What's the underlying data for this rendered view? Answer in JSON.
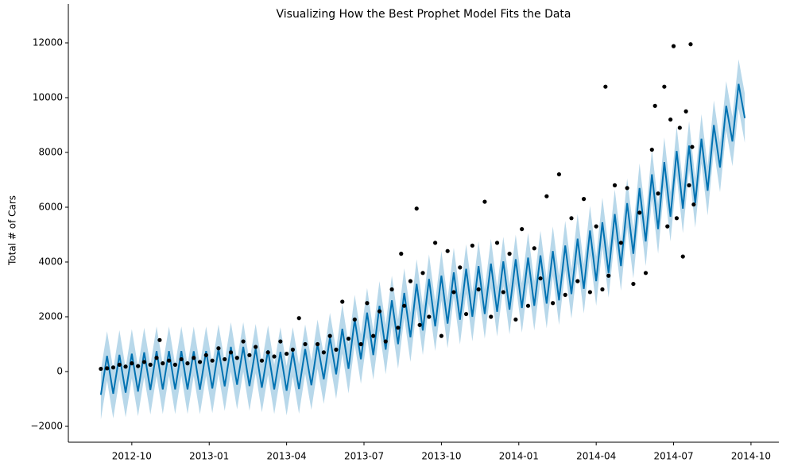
{
  "chart_data": {
    "type": "forecast",
    "title": "Visualizing How the Best Prophet Model Fits the Data",
    "y_label": "Total # of Cars",
    "xlim": [
      2012.545,
      2014.84
    ],
    "ylim": [
      -2580,
      13420
    ],
    "xticks": [
      {
        "value": 2012.75,
        "label": "2012-10"
      },
      {
        "value": 2013.0,
        "label": "2013-01"
      },
      {
        "value": 2013.25,
        "label": "2013-04"
      },
      {
        "value": 2013.5,
        "label": "2013-07"
      },
      {
        "value": 2013.75,
        "label": "2013-10"
      },
      {
        "value": 2014.0,
        "label": "2014-01"
      },
      {
        "value": 2014.25,
        "label": "2014-04"
      },
      {
        "value": 2014.5,
        "label": "2014-07"
      },
      {
        "value": 2014.75,
        "label": "2014-10"
      }
    ],
    "yticks": [
      {
        "value": -2000,
        "label": "−2000"
      },
      0,
      2000,
      4000,
      6000,
      8000,
      10000,
      12000
    ],
    "forecast": {
      "color": "#0072B2",
      "band_color": "#0072B2",
      "x": [
        2012.65,
        2012.67,
        2012.69,
        2012.71,
        2012.73,
        2012.75,
        2012.77,
        2012.79,
        2012.81,
        2012.83,
        2012.85,
        2012.87,
        2012.89,
        2012.91,
        2012.93,
        2012.95,
        2012.97,
        2012.99,
        2013.01,
        2013.03,
        2013.05,
        2013.07,
        2013.09,
        2013.11,
        2013.13,
        2013.15,
        2013.17,
        2013.19,
        2013.21,
        2013.23,
        2013.25,
        2013.27,
        2013.29,
        2013.31,
        2013.33,
        2013.35,
        2013.37,
        2013.39,
        2013.41,
        2013.43,
        2013.45,
        2013.47,
        2013.49,
        2013.51,
        2013.53,
        2013.55,
        2013.57,
        2013.59,
        2013.61,
        2013.63,
        2013.65,
        2013.67,
        2013.69,
        2013.71,
        2013.73,
        2013.75,
        2013.77,
        2013.79,
        2013.81,
        2013.83,
        2013.85,
        2013.87,
        2013.89,
        2013.91,
        2013.93,
        2013.95,
        2013.97,
        2013.99,
        2014.01,
        2014.03,
        2014.05,
        2014.07,
        2014.09,
        2014.11,
        2014.13,
        2014.15,
        2014.17,
        2014.19,
        2014.21,
        2014.23,
        2014.25,
        2014.27,
        2014.29,
        2014.31,
        2014.33,
        2014.35,
        2014.37,
        2014.39,
        2014.41,
        2014.43,
        2014.45,
        2014.47,
        2014.49,
        2014.51,
        2014.53,
        2014.55,
        2014.57,
        2014.59,
        2014.61,
        2014.63,
        2014.65,
        2014.67,
        2014.69,
        2014.71,
        2014.73
      ],
      "yhat": [
        -850,
        570,
        -810,
        610,
        -770,
        650,
        -730,
        700,
        -670,
        750,
        -650,
        750,
        -650,
        750,
        -650,
        740,
        -660,
        750,
        -620,
        820,
        -540,
        900,
        -480,
        900,
        -530,
        840,
        -590,
        780,
        -650,
        720,
        -700,
        720,
        -640,
        820,
        -500,
        1000,
        -280,
        1240,
        -100,
        1560,
        100,
        1900,
        450,
        2150,
        600,
        2400,
        800,
        2600,
        1000,
        2870,
        1250,
        3200,
        1500,
        3380,
        1650,
        3500,
        1750,
        3620,
        1890,
        3750,
        2000,
        3850,
        2100,
        3940,
        2180,
        4020,
        2260,
        4100,
        2320,
        4160,
        2400,
        4240,
        2480,
        4400,
        2600,
        4600,
        2830,
        4850,
        3020,
        5150,
        3300,
        5450,
        3600,
        5750,
        3850,
        6150,
        4300,
        6700,
        4750,
        7200,
        5200,
        7650,
        5650,
        8050,
        5950,
        8250,
        6150,
        8500,
        6600,
        9000,
        7450,
        9700,
        8400,
        10500,
        9250
      ],
      "yhat_lower": [
        -1750,
        -330,
        -1710,
        -290,
        -1670,
        -250,
        -1630,
        -200,
        -1570,
        -150,
        -1550,
        -150,
        -1550,
        -150,
        -1550,
        -160,
        -1560,
        -150,
        -1520,
        -80,
        -1440,
        0,
        -1380,
        0,
        -1430,
        -60,
        -1490,
        -120,
        -1550,
        -180,
        -1600,
        -180,
        -1540,
        -80,
        -1400,
        100,
        -1180,
        340,
        -1000,
        660,
        -800,
        1000,
        -450,
        1250,
        -300,
        1500,
        -100,
        1700,
        100,
        1970,
        350,
        2300,
        600,
        2480,
        750,
        2600,
        850,
        2720,
        990,
        2850,
        1100,
        2950,
        1200,
        3040,
        1280,
        3120,
        1360,
        3200,
        1420,
        3260,
        1500,
        3340,
        1580,
        3500,
        1700,
        3700,
        1930,
        3950,
        2120,
        4250,
        2400,
        4550,
        2700,
        4850,
        2950,
        5250,
        3400,
        5800,
        3850,
        6300,
        4300,
        6750,
        4750,
        7150,
        5050,
        7350,
        5250,
        7600,
        5700,
        8100,
        6550,
        8800,
        7500,
        9600,
        8350
      ],
      "yhat_upper": [
        50,
        1470,
        90,
        1510,
        130,
        1550,
        170,
        1600,
        230,
        1650,
        250,
        1650,
        250,
        1650,
        250,
        1640,
        240,
        1650,
        280,
        1720,
        360,
        1800,
        420,
        1800,
        370,
        1740,
        310,
        1680,
        250,
        1620,
        200,
        1620,
        260,
        1720,
        400,
        1900,
        620,
        2140,
        800,
        2460,
        1000,
        2800,
        1350,
        3050,
        1500,
        3300,
        1700,
        3500,
        1900,
        3770,
        2150,
        4100,
        2400,
        4280,
        2550,
        4400,
        2650,
        4520,
        2790,
        4650,
        2900,
        4750,
        3000,
        4840,
        3080,
        4920,
        3160,
        5000,
        3220,
        5060,
        3300,
        5140,
        3380,
        5300,
        3500,
        5500,
        3730,
        5750,
        3920,
        6050,
        4200,
        6350,
        4500,
        6650,
        4750,
        7050,
        5200,
        7600,
        5650,
        8100,
        6100,
        8550,
        6550,
        8950,
        6850,
        9150,
        7050,
        9400,
        7500,
        9900,
        8350,
        10600,
        9300,
        11400,
        10150
      ]
    },
    "observed": {
      "color": "#000000",
      "x": [
        2012.65,
        2012.67,
        2012.69,
        2012.71,
        2012.73,
        2012.75,
        2012.77,
        2012.79,
        2012.81,
        2012.83,
        2012.84,
        2012.85,
        2012.87,
        2012.89,
        2012.91,
        2012.93,
        2012.95,
        2012.97,
        2012.99,
        2013.01,
        2013.03,
        2013.05,
        2013.07,
        2013.09,
        2013.11,
        2013.13,
        2013.15,
        2013.17,
        2013.19,
        2013.21,
        2013.23,
        2013.25,
        2013.27,
        2013.29,
        2013.31,
        2013.35,
        2013.37,
        2013.39,
        2013.41,
        2013.43,
        2013.45,
        2013.47,
        2013.49,
        2013.51,
        2013.53,
        2013.55,
        2013.57,
        2013.59,
        2013.61,
        2013.62,
        2013.63,
        2013.65,
        2013.67,
        2013.68,
        2013.69,
        2013.71,
        2013.73,
        2013.75,
        2013.77,
        2013.79,
        2013.81,
        2013.83,
        2013.85,
        2013.87,
        2013.89,
        2013.91,
        2013.93,
        2013.95,
        2013.97,
        2013.99,
        2014.01,
        2014.03,
        2014.05,
        2014.07,
        2014.09,
        2014.11,
        2014.13,
        2014.15,
        2014.17,
        2014.19,
        2014.21,
        2014.23,
        2014.25,
        2014.27,
        2014.28,
        2014.29,
        2014.31,
        2014.33,
        2014.35,
        2014.37,
        2014.39,
        2014.41,
        2014.43,
        2014.44,
        2014.45,
        2014.47,
        2014.48,
        2014.49,
        2014.5,
        2014.51,
        2014.52,
        2014.53,
        2014.54,
        2014.55,
        2014.555,
        2014.56,
        2014.565
      ],
      "y": [
        100,
        120,
        150,
        250,
        180,
        300,
        200,
        350,
        250,
        500,
        1150,
        300,
        400,
        250,
        450,
        300,
        500,
        350,
        600,
        400,
        850,
        450,
        700,
        500,
        1100,
        600,
        900,
        400,
        700,
        550,
        1100,
        650,
        800,
        1950,
        1000,
        1000,
        700,
        1300,
        800,
        2550,
        1200,
        1900,
        1000,
        2500,
        1300,
        2200,
        1100,
        3000,
        1600,
        4300,
        2400,
        3300,
        5950,
        1700,
        3600,
        2000,
        4700,
        1300,
        4400,
        2900,
        3800,
        2100,
        4600,
        3000,
        6200,
        2000,
        4700,
        2900,
        4300,
        1900,
        5200,
        2400,
        4500,
        3400,
        6400,
        2500,
        7200,
        2800,
        5600,
        3300,
        6300,
        2900,
        5300,
        3000,
        10400,
        3500,
        6800,
        4700,
        6700,
        3200,
        5800,
        3600,
        8100,
        9700,
        6500,
        10400,
        5300,
        9200,
        11880,
        5600,
        8900,
        4200,
        9500,
        6800,
        11950,
        8200,
        6100
      ]
    }
  }
}
